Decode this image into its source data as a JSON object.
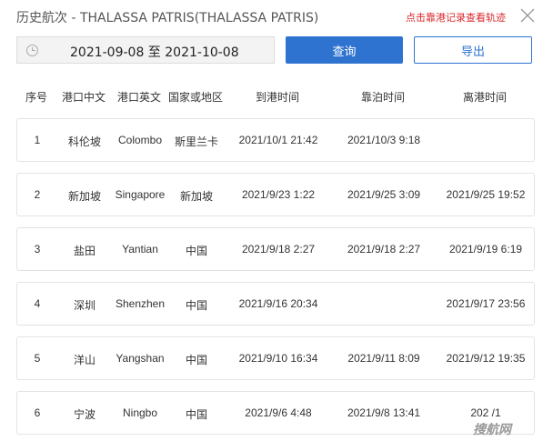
{
  "title": "历史航次 - THALASSA PATRIS(THALASSA PATRIS)",
  "hint": "点击靠港记录查看轨迹",
  "date_range": "2021-09-08 至 2021-10-08",
  "query_label": "查询",
  "export_label": "导出",
  "columns": [
    "序号",
    "港口中文",
    "港口英文",
    "国家或地区",
    "到港时间",
    "靠泊时间",
    "离港时间"
  ],
  "rows": [
    [
      "1",
      "科伦坡",
      "Colombo",
      "斯里兰卡",
      "2021/10/1 21:42",
      "2021/10/3 9:18",
      ""
    ],
    [
      "2",
      "新加坡",
      "Singapore",
      "新加坡",
      "2021/9/23 1:22",
      "2021/9/25 3:09",
      "2021/9/25 19:52"
    ],
    [
      "3",
      "盐田",
      "Yantian",
      "中国",
      "2021/9/18 2:27",
      "2021/9/18 2:27",
      "2021/9/19 6:19"
    ],
    [
      "4",
      "深圳",
      "Shenzhen",
      "中国",
      "2021/9/16 20:34",
      "",
      "2021/9/17 23:56"
    ],
    [
      "5",
      "洋山",
      "Yangshan",
      "中国",
      "2021/9/10 16:34",
      "2021/9/11 8:09",
      "2021/9/12 19:35"
    ],
    [
      "6",
      "宁波",
      "Ningbo",
      "中国",
      "2021/9/6 4:48",
      "2021/9/8 13:41",
      "202  /1"
    ]
  ],
  "watermark": "搜航网"
}
